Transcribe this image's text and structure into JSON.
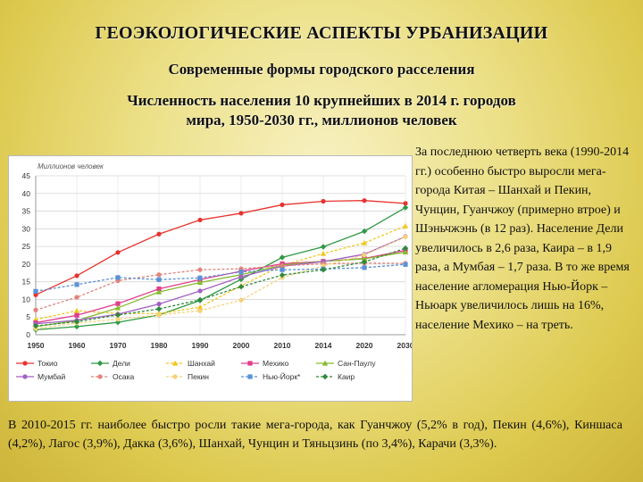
{
  "header": {
    "title": "ГЕОЭКОЛОГИЧЕСКИЕ АСПЕКТЫ УРБАНИЗАЦИИ",
    "subtitle": "Современные формы городского расселения",
    "heading_line1": "Численность населения 10 крупнейших в 2014 г. городов",
    "heading_line2": "мира, 1950-2030 гг., миллионов человек"
  },
  "side_text": "За последнюю четверть века (1990-2014 гг.) особенно быстро выросли мега-города Китая – Шанхай и Пекин, Чунцин, Гуанчжоу (примерно втрое) и Шэньчжэнь (в 12 раз). Население Дели увеличилось в 2,6 раза, Каира – в 1,9 раза, а Мумбая – 1,7 раза. В то же время население агломерация Нью-Йорк – Ньюарк увеличилось лишь на 16%, население Мехико – на треть.",
  "bottom_text": "В 2010-2015 гг. наиболее быстро росли такие мега-города, как Гуанчжоу (5,2% в год), Пекин (4,6%), Киншаса (4,2%), Лагос (3,9%), Дакка (3,6%), Шанхай, Чунцин и Тяньцзинь (по 3,4%), Карачи (3,3%).",
  "chart_data": {
    "type": "line",
    "ylabel": "Миллионов человек",
    "ylim": [
      0,
      45
    ],
    "yticks": [
      0,
      5,
      10,
      15,
      20,
      25,
      30,
      35,
      40,
      45
    ],
    "x": [
      "1950",
      "1960",
      "1970",
      "1980",
      "1990",
      "2000",
      "2010",
      "2014",
      "2020",
      "2030"
    ],
    "grid": true,
    "legend_position": "bottom",
    "series": [
      {
        "name": "Токио",
        "color": "#e8322d",
        "dash": false,
        "marker": "circle",
        "values": [
          11.3,
          16.7,
          23.3,
          28.5,
          32.5,
          34.4,
          36.8,
          37.8,
          38.0,
          37.2
        ]
      },
      {
        "name": "Дели",
        "color": "#2f9a44",
        "dash": false,
        "marker": "diamond",
        "values": [
          1.4,
          2.3,
          3.5,
          5.6,
          9.7,
          15.7,
          21.9,
          24.9,
          29.3,
          36.0
        ]
      },
      {
        "name": "Шанхай",
        "color": "#f3c61d",
        "dash": true,
        "marker": "triangle",
        "values": [
          4.3,
          6.8,
          6.0,
          6.0,
          7.8,
          13.9,
          19.6,
          23.0,
          26.0,
          30.8
        ]
      },
      {
        "name": "Мехико",
        "color": "#e13c8c",
        "dash": false,
        "marker": "square",
        "values": [
          3.4,
          5.5,
          8.8,
          13.0,
          15.6,
          18.0,
          20.1,
          20.8,
          21.6,
          23.9
        ]
      },
      {
        "name": "Сан-Паулу",
        "color": "#86bb2e",
        "dash": false,
        "marker": "triangle",
        "values": [
          2.3,
          4.0,
          7.6,
          12.1,
          14.8,
          17.0,
          19.7,
          20.8,
          21.5,
          23.4
        ]
      },
      {
        "name": "Мумбай",
        "color": "#a35fc2",
        "dash": false,
        "marker": "circle",
        "values": [
          3.1,
          4.1,
          5.8,
          8.7,
          12.4,
          16.4,
          19.4,
          20.7,
          22.8,
          27.8
        ]
      },
      {
        "name": "Осака",
        "color": "#e2837c",
        "dash": true,
        "marker": "circle",
        "values": [
          7.0,
          10.6,
          15.3,
          17.0,
          18.4,
          18.7,
          19.5,
          20.1,
          20.3,
          20.2
        ]
      },
      {
        "name": "Пекин",
        "color": "#f5d27a",
        "dash": true,
        "marker": "circle",
        "values": [
          1.7,
          3.3,
          4.4,
          5.6,
          6.8,
          9.8,
          16.2,
          19.5,
          22.6,
          27.7
        ]
      },
      {
        "name": "Нью-Йорк*",
        "color": "#5b92d6",
        "dash": true,
        "marker": "square",
        "values": [
          12.3,
          14.2,
          16.2,
          15.6,
          16.1,
          17.8,
          18.4,
          18.6,
          19.0,
          19.9
        ]
      },
      {
        "name": "Каир",
        "color": "#2e8a3c",
        "dash": true,
        "marker": "diamond",
        "values": [
          2.5,
          3.7,
          5.6,
          7.3,
          9.9,
          13.6,
          16.9,
          18.4,
          20.6,
          24.5
        ]
      }
    ]
  }
}
